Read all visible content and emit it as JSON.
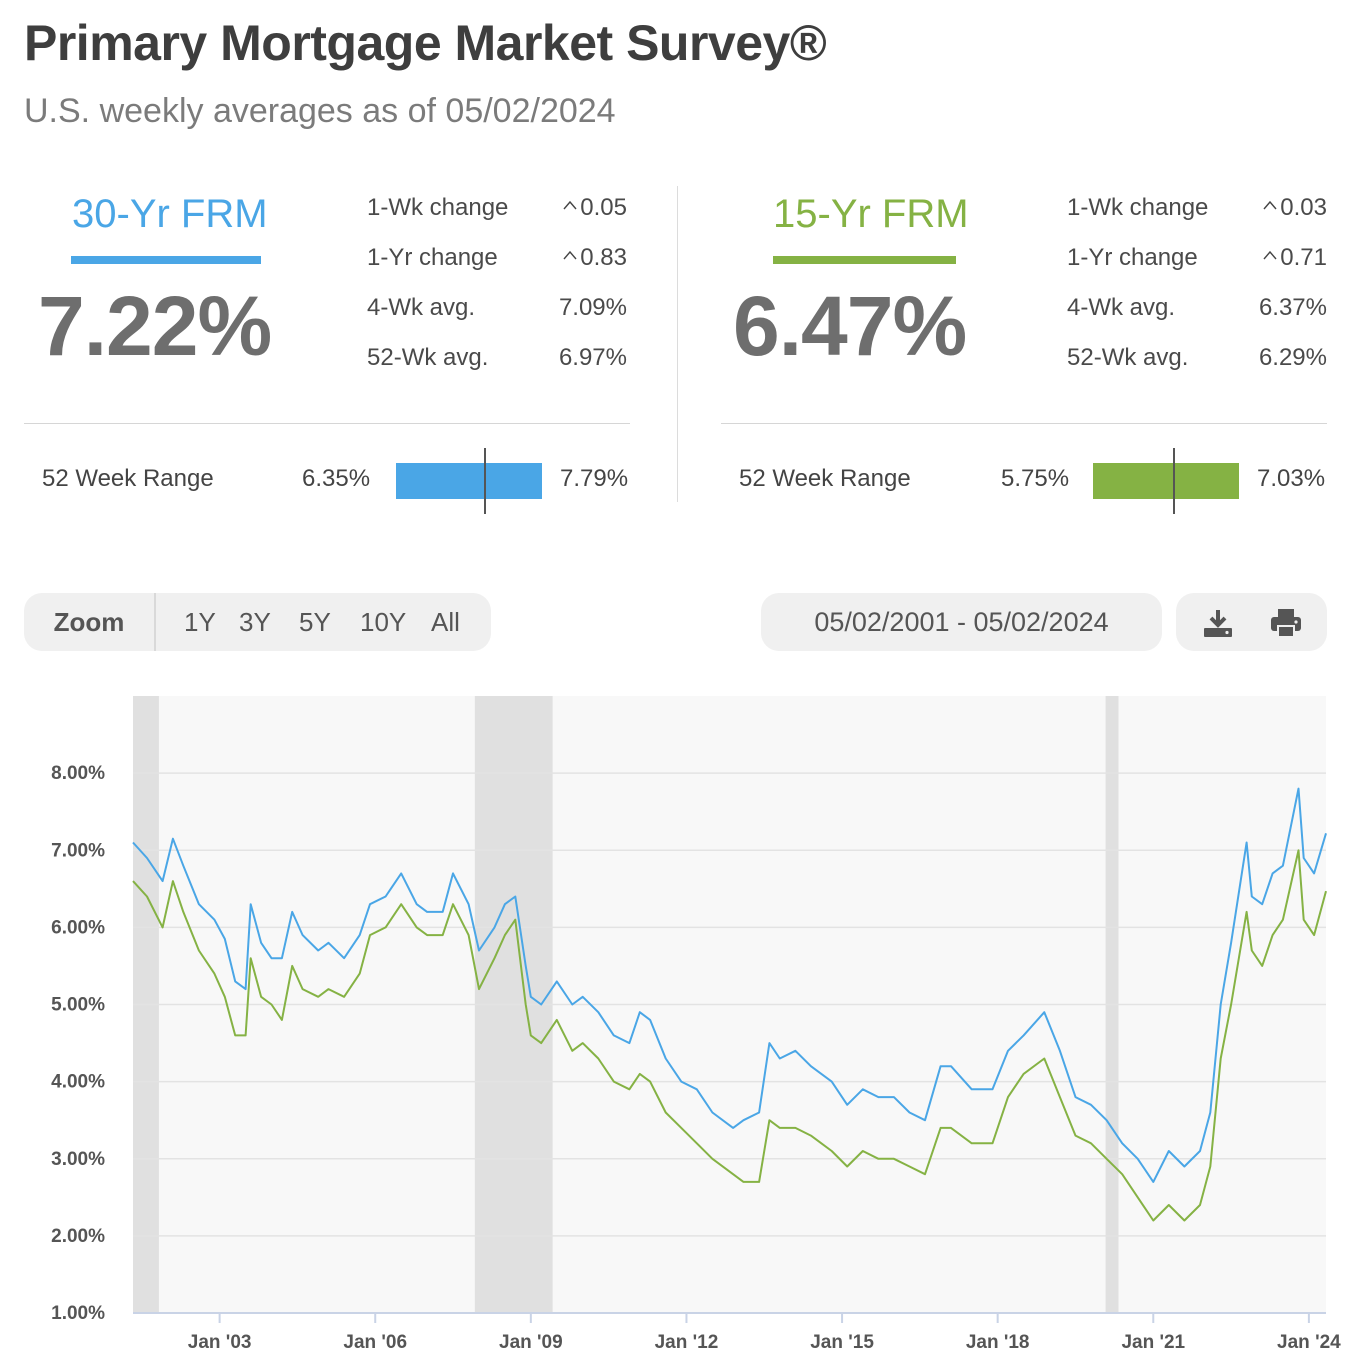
{
  "header": {
    "title": "Primary Mortgage Market Survey®",
    "subtitle": "U.S. weekly averages as of 05/02/2024"
  },
  "colors": {
    "frm30": "#4aa6e6",
    "frm15": "#85b244",
    "recession": "#e0e0e0"
  },
  "frm30": {
    "label": "30-Yr FRM",
    "rate": "7.22%",
    "stats": [
      {
        "label": "1-Wk change",
        "value": "0.05",
        "direction": "up"
      },
      {
        "label": "1-Yr change",
        "value": "0.83",
        "direction": "up"
      },
      {
        "label": "4-Wk avg.",
        "value": "7.09%"
      },
      {
        "label": "52-Wk avg.",
        "value": "6.97%"
      }
    ],
    "range": {
      "label": "52 Week Range",
      "low": "6.35%",
      "high": "7.79%",
      "current_fraction": 0.6
    }
  },
  "frm15": {
    "label": "15-Yr FRM",
    "rate": "6.47%",
    "stats": [
      {
        "label": "1-Wk change",
        "value": "0.03",
        "direction": "up"
      },
      {
        "label": "1-Yr change",
        "value": "0.71",
        "direction": "up"
      },
      {
        "label": "4-Wk avg.",
        "value": "6.37%"
      },
      {
        "label": "52-Wk avg.",
        "value": "6.29%"
      }
    ],
    "range": {
      "label": "52 Week Range",
      "low": "5.75%",
      "high": "7.03%",
      "current_fraction": 0.55
    }
  },
  "controls": {
    "zoom_label": "Zoom",
    "zoom_options": [
      "1Y",
      "3Y",
      "5Y",
      "10Y",
      "All"
    ],
    "date_range": "05/02/2001 - 05/02/2024",
    "download_icon": "download-icon",
    "print_icon": "print-icon"
  },
  "chart_data": {
    "type": "line",
    "x_range": [
      2001.33,
      2024.33
    ],
    "ylim": [
      1,
      9
    ],
    "y_ticks": [
      "1.00%",
      "2.00%",
      "3.00%",
      "4.00%",
      "5.00%",
      "6.00%",
      "7.00%",
      "8.00%"
    ],
    "x_ticks": [
      {
        "label": "Jan '03",
        "x": 2003.0
      },
      {
        "label": "Jan '06",
        "x": 2006.0
      },
      {
        "label": "Jan '09",
        "x": 2009.0
      },
      {
        "label": "Jan '12",
        "x": 2012.0
      },
      {
        "label": "Jan '15",
        "x": 2015.0
      },
      {
        "label": "Jan '18",
        "x": 2018.0
      },
      {
        "label": "Jan '21",
        "x": 2021.0
      },
      {
        "label": "Jan '24",
        "x": 2024.0
      }
    ],
    "recessions": [
      [
        2001.33,
        2001.83
      ],
      [
        2007.92,
        2009.42
      ],
      [
        2020.08,
        2020.33
      ]
    ],
    "grid": true,
    "series": [
      {
        "name": "30-Yr FRM",
        "x": [
          2001.33,
          2001.6,
          2001.9,
          2002.1,
          2002.3,
          2002.6,
          2002.9,
          2003.1,
          2003.3,
          2003.5,
          2003.6,
          2003.8,
          2004.0,
          2004.2,
          2004.4,
          2004.6,
          2004.9,
          2005.1,
          2005.4,
          2005.7,
          2005.9,
          2006.2,
          2006.5,
          2006.8,
          2007.0,
          2007.3,
          2007.5,
          2007.8,
          2008.0,
          2008.3,
          2008.5,
          2008.7,
          2008.9,
          2009.0,
          2009.2,
          2009.5,
          2009.8,
          2010.0,
          2010.3,
          2010.6,
          2010.9,
          2011.1,
          2011.3,
          2011.6,
          2011.9,
          2012.2,
          2012.5,
          2012.9,
          2013.1,
          2013.4,
          2013.6,
          2013.8,
          2014.1,
          2014.4,
          2014.8,
          2015.1,
          2015.4,
          2015.7,
          2016.0,
          2016.3,
          2016.6,
          2016.9,
          2017.1,
          2017.5,
          2017.9,
          2018.2,
          2018.5,
          2018.9,
          2019.2,
          2019.5,
          2019.8,
          2020.1,
          2020.4,
          2020.7,
          2021.0,
          2021.3,
          2021.6,
          2021.9,
          2022.1,
          2022.3,
          2022.5,
          2022.8,
          2022.9,
          2023.1,
          2023.3,
          2023.5,
          2023.8,
          2023.9,
          2024.1,
          2024.33
        ],
        "values": [
          7.1,
          6.9,
          6.6,
          7.15,
          6.8,
          6.3,
          6.1,
          5.85,
          5.3,
          5.2,
          6.3,
          5.8,
          5.6,
          5.6,
          6.2,
          5.9,
          5.7,
          5.8,
          5.6,
          5.9,
          6.3,
          6.4,
          6.7,
          6.3,
          6.2,
          6.2,
          6.7,
          6.3,
          5.7,
          6.0,
          6.3,
          6.4,
          5.5,
          5.1,
          5.0,
          5.3,
          5.0,
          5.1,
          4.9,
          4.6,
          4.5,
          4.9,
          4.8,
          4.3,
          4.0,
          3.9,
          3.6,
          3.4,
          3.5,
          3.6,
          4.5,
          4.3,
          4.4,
          4.2,
          4.0,
          3.7,
          3.9,
          3.8,
          3.8,
          3.6,
          3.5,
          4.2,
          4.2,
          3.9,
          3.9,
          4.4,
          4.6,
          4.9,
          4.4,
          3.8,
          3.7,
          3.5,
          3.2,
          3.0,
          2.7,
          3.1,
          2.9,
          3.1,
          3.6,
          5.0,
          5.8,
          7.1,
          6.4,
          6.3,
          6.7,
          6.8,
          7.8,
          6.9,
          6.7,
          7.22
        ]
      },
      {
        "name": "15-Yr FRM",
        "x": [
          2001.33,
          2001.6,
          2001.9,
          2002.1,
          2002.3,
          2002.6,
          2002.9,
          2003.1,
          2003.3,
          2003.5,
          2003.6,
          2003.8,
          2004.0,
          2004.2,
          2004.4,
          2004.6,
          2004.9,
          2005.1,
          2005.4,
          2005.7,
          2005.9,
          2006.2,
          2006.5,
          2006.8,
          2007.0,
          2007.3,
          2007.5,
          2007.8,
          2008.0,
          2008.3,
          2008.5,
          2008.7,
          2008.9,
          2009.0,
          2009.2,
          2009.5,
          2009.8,
          2010.0,
          2010.3,
          2010.6,
          2010.9,
          2011.1,
          2011.3,
          2011.6,
          2011.9,
          2012.2,
          2012.5,
          2012.9,
          2013.1,
          2013.4,
          2013.6,
          2013.8,
          2014.1,
          2014.4,
          2014.8,
          2015.1,
          2015.4,
          2015.7,
          2016.0,
          2016.3,
          2016.6,
          2016.9,
          2017.1,
          2017.5,
          2017.9,
          2018.2,
          2018.5,
          2018.9,
          2019.2,
          2019.5,
          2019.8,
          2020.1,
          2020.4,
          2020.7,
          2021.0,
          2021.3,
          2021.6,
          2021.9,
          2022.1,
          2022.3,
          2022.5,
          2022.8,
          2022.9,
          2023.1,
          2023.3,
          2023.5,
          2023.8,
          2023.9,
          2024.1,
          2024.33
        ],
        "values": [
          6.6,
          6.4,
          6.0,
          6.6,
          6.2,
          5.7,
          5.4,
          5.1,
          4.6,
          4.6,
          5.6,
          5.1,
          5.0,
          4.8,
          5.5,
          5.2,
          5.1,
          5.2,
          5.1,
          5.4,
          5.9,
          6.0,
          6.3,
          6.0,
          5.9,
          5.9,
          6.3,
          5.9,
          5.2,
          5.6,
          5.9,
          6.1,
          5.0,
          4.6,
          4.5,
          4.8,
          4.4,
          4.5,
          4.3,
          4.0,
          3.9,
          4.1,
          4.0,
          3.6,
          3.4,
          3.2,
          3.0,
          2.8,
          2.7,
          2.7,
          3.5,
          3.4,
          3.4,
          3.3,
          3.1,
          2.9,
          3.1,
          3.0,
          3.0,
          2.9,
          2.8,
          3.4,
          3.4,
          3.2,
          3.2,
          3.8,
          4.1,
          4.3,
          3.8,
          3.3,
          3.2,
          3.0,
          2.8,
          2.5,
          2.2,
          2.4,
          2.2,
          2.4,
          2.9,
          4.3,
          5.0,
          6.2,
          5.7,
          5.5,
          5.9,
          6.1,
          7.0,
          6.1,
          5.9,
          6.47
        ]
      }
    ]
  }
}
